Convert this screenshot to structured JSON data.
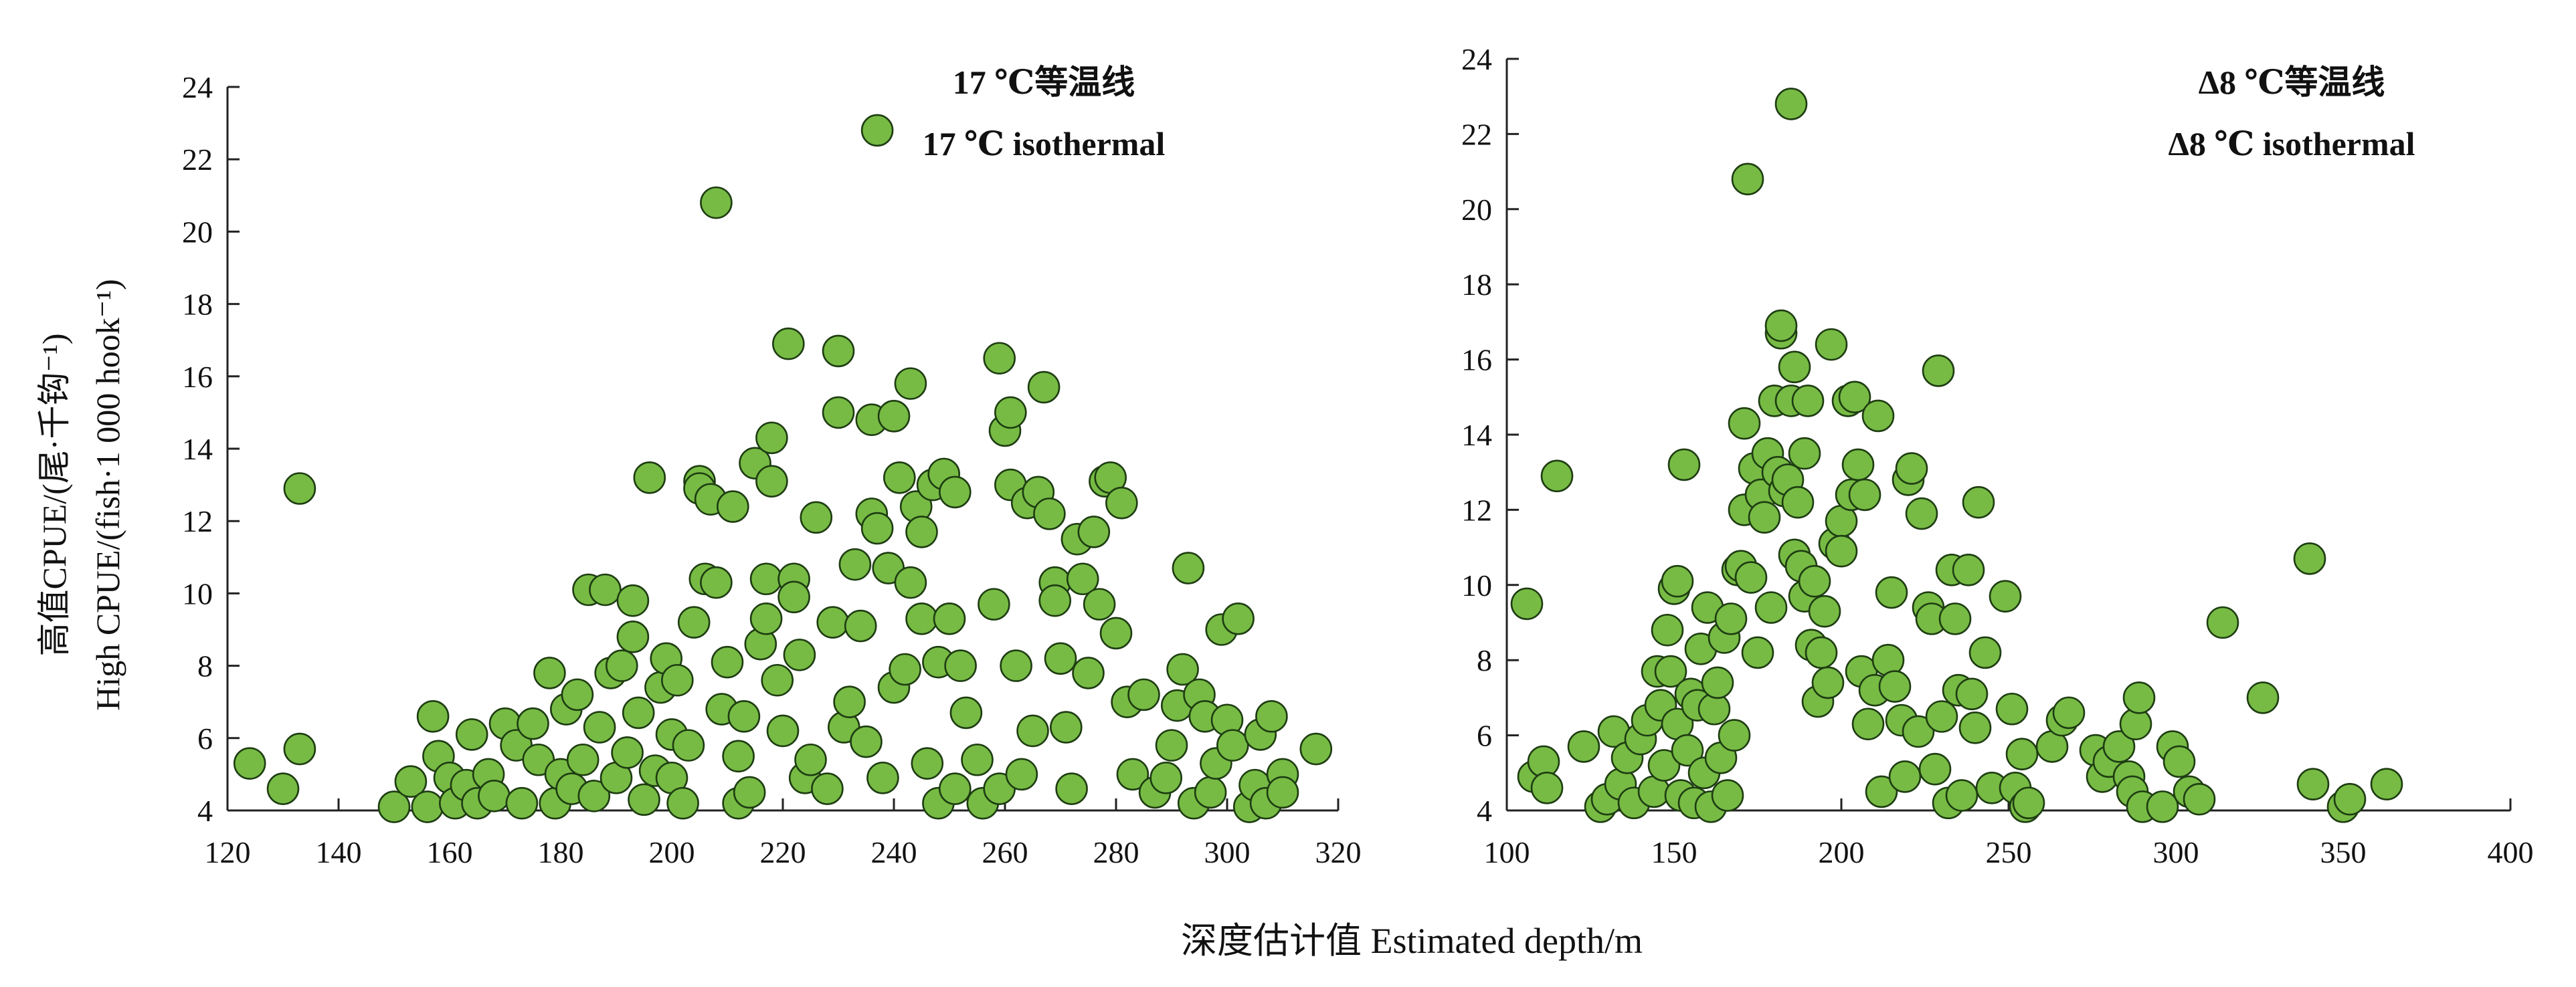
{
  "figure": {
    "xlabel": "深度估计值 Estimated depth/m",
    "ylabel_cn": "高值CPUE/(尾·千钩⁻¹)",
    "ylabel_en": "High CPUE/(fish·1 000 hook⁻¹)"
  },
  "chart_data": [
    {
      "type": "scatter",
      "legend_cn": "17 ℃等温线",
      "legend_en": "17 ℃ isothermal",
      "legend_placement": "top-right",
      "marker_color": "#77bb44",
      "xlim": [
        120,
        320
      ],
      "ylim": [
        4,
        24
      ],
      "xticks": [
        120,
        140,
        160,
        180,
        200,
        220,
        240,
        260,
        280,
        300,
        320
      ],
      "yticks": [
        4,
        6,
        8,
        10,
        12,
        14,
        16,
        18,
        20,
        22,
        24
      ],
      "grid": false,
      "points": [
        [
          124,
          5.3
        ],
        [
          130,
          4.6
        ],
        [
          133,
          5.7
        ],
        [
          133,
          12.9
        ],
        [
          150,
          4.1
        ],
        [
          153,
          4.8
        ],
        [
          156,
          4.1
        ],
        [
          157,
          6.6
        ],
        [
          158,
          5.5
        ],
        [
          160,
          4.9
        ],
        [
          161,
          4.2
        ],
        [
          163,
          4.7
        ],
        [
          164,
          6.1
        ],
        [
          165,
          4.2
        ],
        [
          167,
          5.0
        ],
        [
          168,
          4.4
        ],
        [
          170,
          6.4
        ],
        [
          172,
          5.8
        ],
        [
          173,
          4.2
        ],
        [
          175,
          6.4
        ],
        [
          176,
          5.4
        ],
        [
          178,
          7.8
        ],
        [
          179,
          4.2
        ],
        [
          180,
          5.0
        ],
        [
          181,
          6.8
        ],
        [
          182,
          4.6
        ],
        [
          183,
          7.2
        ],
        [
          184,
          5.4
        ],
        [
          185,
          10.1
        ],
        [
          186,
          4.4
        ],
        [
          187,
          6.3
        ],
        [
          188,
          10.1
        ],
        [
          189,
          7.8
        ],
        [
          190,
          4.9
        ],
        [
          191,
          8.0
        ],
        [
          192,
          5.6
        ],
        [
          193,
          9.8
        ],
        [
          193,
          8.8
        ],
        [
          194,
          6.7
        ],
        [
          195,
          4.3
        ],
        [
          196,
          13.2
        ],
        [
          197,
          5.1
        ],
        [
          198,
          7.4
        ],
        [
          199,
          8.2
        ],
        [
          200,
          4.9
        ],
        [
          200,
          6.1
        ],
        [
          201,
          7.6
        ],
        [
          202,
          4.2
        ],
        [
          203,
          5.8
        ],
        [
          204,
          9.2
        ],
        [
          205,
          13.1
        ],
        [
          205,
          12.9
        ],
        [
          206,
          10.4
        ],
        [
          207,
          12.6
        ],
        [
          208,
          10.3
        ],
        [
          208,
          20.8
        ],
        [
          209,
          6.8
        ],
        [
          210,
          8.1
        ],
        [
          211,
          12.4
        ],
        [
          212,
          4.2
        ],
        [
          212,
          5.5
        ],
        [
          213,
          6.6
        ],
        [
          214,
          4.5
        ],
        [
          215,
          13.6
        ],
        [
          216,
          8.6
        ],
        [
          217,
          10.4
        ],
        [
          217,
          9.3
        ],
        [
          218,
          14.3
        ],
        [
          218,
          13.1
        ],
        [
          219,
          7.6
        ],
        [
          220,
          6.2
        ],
        [
          221,
          16.9
        ],
        [
          222,
          10.4
        ],
        [
          222,
          9.9
        ],
        [
          223,
          8.3
        ],
        [
          224,
          4.9
        ],
        [
          225,
          5.4
        ],
        [
          226,
          12.1
        ],
        [
          228,
          4.6
        ],
        [
          229,
          9.2
        ],
        [
          230,
          15.0
        ],
        [
          230,
          16.7
        ],
        [
          231,
          6.3
        ],
        [
          232,
          7.0
        ],
        [
          233,
          10.8
        ],
        [
          234,
          9.1
        ],
        [
          235,
          5.9
        ],
        [
          236,
          12.2
        ],
        [
          236,
          14.8
        ],
        [
          237,
          22.8
        ],
        [
          237,
          11.8
        ],
        [
          238,
          4.9
        ],
        [
          239,
          10.7
        ],
        [
          240,
          14.9
        ],
        [
          240,
          7.4
        ],
        [
          241,
          13.2
        ],
        [
          242,
          7.9
        ],
        [
          243,
          15.8
        ],
        [
          243,
          10.3
        ],
        [
          244,
          12.4
        ],
        [
          245,
          9.3
        ],
        [
          245,
          11.7
        ],
        [
          246,
          5.3
        ],
        [
          247,
          13.0
        ],
        [
          248,
          8.1
        ],
        [
          248,
          4.2
        ],
        [
          249,
          13.3
        ],
        [
          250,
          9.3
        ],
        [
          251,
          12.8
        ],
        [
          251,
          4.6
        ],
        [
          252,
          8.0
        ],
        [
          253,
          6.7
        ],
        [
          255,
          5.4
        ],
        [
          256,
          4.2
        ],
        [
          258,
          9.7
        ],
        [
          259,
          16.5
        ],
        [
          259,
          4.6
        ],
        [
          260,
          14.5
        ],
        [
          261,
          15.0
        ],
        [
          261,
          13.0
        ],
        [
          262,
          8.0
        ],
        [
          263,
          5.0
        ],
        [
          264,
          12.5
        ],
        [
          265,
          6.2
        ],
        [
          266,
          12.8
        ],
        [
          267,
          15.7
        ],
        [
          268,
          12.2
        ],
        [
          269,
          10.3
        ],
        [
          269,
          9.8
        ],
        [
          270,
          8.2
        ],
        [
          271,
          6.3
        ],
        [
          272,
          4.6
        ],
        [
          273,
          11.5
        ],
        [
          274,
          10.4
        ],
        [
          275,
          7.8
        ],
        [
          276,
          11.7
        ],
        [
          277,
          9.7
        ],
        [
          278,
          13.1
        ],
        [
          279,
          13.2
        ],
        [
          280,
          8.9
        ],
        [
          281,
          12.5
        ],
        [
          282,
          7.0
        ],
        [
          283,
          5.0
        ],
        [
          285,
          7.2
        ],
        [
          287,
          4.5
        ],
        [
          289,
          4.9
        ],
        [
          290,
          5.8
        ],
        [
          291,
          6.9
        ],
        [
          292,
          7.9
        ],
        [
          293,
          10.7
        ],
        [
          294,
          4.2
        ],
        [
          295,
          7.2
        ],
        [
          296,
          6.6
        ],
        [
          297,
          4.5
        ],
        [
          298,
          5.3
        ],
        [
          299,
          9.0
        ],
        [
          300,
          6.5
        ],
        [
          301,
          5.8
        ],
        [
          302,
          9.3
        ],
        [
          304,
          4.1
        ],
        [
          305,
          4.7
        ],
        [
          306,
          6.1
        ],
        [
          307,
          4.2
        ],
        [
          308,
          6.6
        ],
        [
          310,
          5.0
        ],
        [
          310,
          4.5
        ],
        [
          316,
          5.7
        ]
      ]
    },
    {
      "type": "scatter",
      "legend_cn": "Δ8 ℃等温线",
      "legend_en": "Δ8 ℃ isothermal",
      "legend_placement": "top-right",
      "marker_color": "#77bb44",
      "xlim": [
        100,
        400
      ],
      "ylim": [
        4,
        24
      ],
      "xticks": [
        100,
        150,
        200,
        250,
        300,
        350,
        400
      ],
      "yticks": [
        4,
        6,
        8,
        10,
        12,
        14,
        16,
        18,
        20,
        22,
        24
      ],
      "grid": false,
      "points": [
        [
          106,
          9.5
        ],
        [
          108,
          4.9
        ],
        [
          111,
          5.3
        ],
        [
          112,
          4.6
        ],
        [
          115,
          12.9
        ],
        [
          123,
          5.7
        ],
        [
          128,
          4.1
        ],
        [
          130,
          4.3
        ],
        [
          132,
          6.1
        ],
        [
          134,
          4.7
        ],
        [
          136,
          5.4
        ],
        [
          138,
          4.2
        ],
        [
          140,
          5.9
        ],
        [
          142,
          6.4
        ],
        [
          144,
          4.5
        ],
        [
          145,
          7.7
        ],
        [
          146,
          6.8
        ],
        [
          147,
          5.2
        ],
        [
          148,
          8.8
        ],
        [
          149,
          7.7
        ],
        [
          150,
          9.9
        ],
        [
          151,
          6.3
        ],
        [
          151,
          10.1
        ],
        [
          152,
          4.4
        ],
        [
          153,
          13.2
        ],
        [
          154,
          5.6
        ],
        [
          155,
          7.1
        ],
        [
          156,
          4.2
        ],
        [
          157,
          6.8
        ],
        [
          158,
          8.3
        ],
        [
          159,
          5.0
        ],
        [
          160,
          9.4
        ],
        [
          161,
          4.1
        ],
        [
          162,
          6.7
        ],
        [
          163,
          7.4
        ],
        [
          164,
          5.4
        ],
        [
          165,
          8.6
        ],
        [
          166,
          4.4
        ],
        [
          167,
          9.1
        ],
        [
          168,
          6.0
        ],
        [
          169,
          10.4
        ],
        [
          170,
          10.5
        ],
        [
          171,
          12.0
        ],
        [
          171,
          14.3
        ],
        [
          172,
          20.8
        ],
        [
          173,
          10.2
        ],
        [
          174,
          13.1
        ],
        [
          175,
          8.2
        ],
        [
          176,
          12.4
        ],
        [
          177,
          11.8
        ],
        [
          178,
          13.5
        ],
        [
          179,
          9.4
        ],
        [
          180,
          14.9
        ],
        [
          181,
          13.0
        ],
        [
          182,
          16.7
        ],
        [
          182,
          16.9
        ],
        [
          183,
          12.5
        ],
        [
          184,
          12.8
        ],
        [
          185,
          22.8
        ],
        [
          185,
          14.9
        ],
        [
          186,
          10.8
        ],
        [
          186,
          15.8
        ],
        [
          187,
          12.2
        ],
        [
          188,
          10.5
        ],
        [
          189,
          13.5
        ],
        [
          189,
          9.7
        ],
        [
          190,
          14.9
        ],
        [
          191,
          8.4
        ],
        [
          192,
          10.1
        ],
        [
          193,
          6.9
        ],
        [
          194,
          8.2
        ],
        [
          195,
          9.3
        ],
        [
          196,
          7.4
        ],
        [
          197,
          16.4
        ],
        [
          198,
          11.1
        ],
        [
          200,
          11.7
        ],
        [
          200,
          10.9
        ],
        [
          202,
          14.9
        ],
        [
          203,
          12.4
        ],
        [
          204,
          15.0
        ],
        [
          205,
          13.2
        ],
        [
          206,
          7.7
        ],
        [
          207,
          12.4
        ],
        [
          208,
          6.3
        ],
        [
          210,
          7.2
        ],
        [
          211,
          14.5
        ],
        [
          212,
          4.5
        ],
        [
          214,
          8.0
        ],
        [
          215,
          9.8
        ],
        [
          216,
          7.3
        ],
        [
          218,
          6.4
        ],
        [
          219,
          4.9
        ],
        [
          220,
          12.8
        ],
        [
          221,
          13.1
        ],
        [
          223,
          6.1
        ],
        [
          224,
          11.9
        ],
        [
          226,
          9.4
        ],
        [
          227,
          9.1
        ],
        [
          228,
          5.1
        ],
        [
          229,
          15.7
        ],
        [
          230,
          6.5
        ],
        [
          232,
          4.2
        ],
        [
          233,
          10.4
        ],
        [
          234,
          9.1
        ],
        [
          235,
          7.2
        ],
        [
          236,
          4.4
        ],
        [
          238,
          10.4
        ],
        [
          239,
          7.1
        ],
        [
          240,
          6.2
        ],
        [
          241,
          12.2
        ],
        [
          243,
          8.2
        ],
        [
          245,
          4.6
        ],
        [
          249,
          9.7
        ],
        [
          251,
          6.7
        ],
        [
          252,
          4.6
        ],
        [
          254,
          5.5
        ],
        [
          255,
          4.1
        ],
        [
          256,
          4.2
        ],
        [
          263,
          5.7
        ],
        [
          266,
          6.4
        ],
        [
          268,
          6.6
        ],
        [
          276,
          5.6
        ],
        [
          278,
          4.9
        ],
        [
          280,
          5.3
        ],
        [
          283,
          5.7
        ],
        [
          286,
          4.9
        ],
        [
          287,
          4.5
        ],
        [
          288,
          6.3
        ],
        [
          289,
          7.0
        ],
        [
          290,
          4.1
        ],
        [
          296,
          4.1
        ],
        [
          299,
          5.7
        ],
        [
          301,
          5.3
        ],
        [
          304,
          4.5
        ],
        [
          307,
          4.3
        ],
        [
          314,
          9.0
        ],
        [
          326,
          7.0
        ],
        [
          340,
          10.7
        ],
        [
          341,
          4.7
        ],
        [
          350,
          4.1
        ],
        [
          352,
          4.3
        ],
        [
          363,
          4.7
        ]
      ]
    }
  ]
}
